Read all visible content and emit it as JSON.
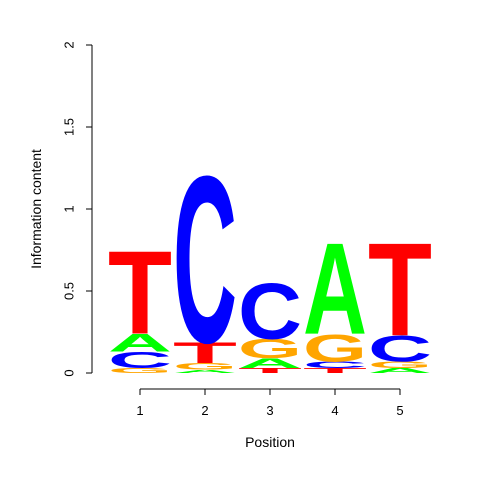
{
  "chart_data": {
    "type": "sequence-logo",
    "xlabel": "Position",
    "ylabel": "Information content",
    "ylim": [
      0,
      2
    ],
    "y_ticks": [
      "0",
      "0.5",
      "1",
      "1.5",
      "2"
    ],
    "y_tick_values": [
      0,
      0.5,
      1,
      1.5,
      2
    ],
    "positions": [
      "1",
      "2",
      "3",
      "4",
      "5"
    ],
    "colors": {
      "A": "#00ff00",
      "C": "#0000ff",
      "G": "#ffa500",
      "T": "#ff0000"
    },
    "stacks": [
      {
        "position": "1",
        "letters": [
          {
            "letter": "G",
            "height": 0.03
          },
          {
            "letter": "C",
            "height": 0.1
          },
          {
            "letter": "A",
            "height": 0.11
          },
          {
            "letter": "T",
            "height": 0.52
          }
        ]
      },
      {
        "position": "2",
        "letters": [
          {
            "letter": "A",
            "height": 0.02
          },
          {
            "letter": "G",
            "height": 0.04
          },
          {
            "letter": "T",
            "height": 0.13
          },
          {
            "letter": "C",
            "height": 1.04
          }
        ]
      },
      {
        "position": "3",
        "letters": [
          {
            "letter": "T",
            "height": 0.03
          },
          {
            "letter": "A",
            "height": 0.06
          },
          {
            "letter": "G",
            "height": 0.12
          },
          {
            "letter": "C",
            "height": 0.35
          }
        ]
      },
      {
        "position": "4",
        "letters": [
          {
            "letter": "T",
            "height": 0.03
          },
          {
            "letter": "C",
            "height": 0.04
          },
          {
            "letter": "G",
            "height": 0.17
          },
          {
            "letter": "A",
            "height": 0.57
          }
        ]
      },
      {
        "position": "5",
        "letters": [
          {
            "letter": "A",
            "height": 0.03
          },
          {
            "letter": "G",
            "height": 0.04
          },
          {
            "letter": "C",
            "height": 0.16
          },
          {
            "letter": "T",
            "height": 0.58
          }
        ]
      }
    ]
  }
}
